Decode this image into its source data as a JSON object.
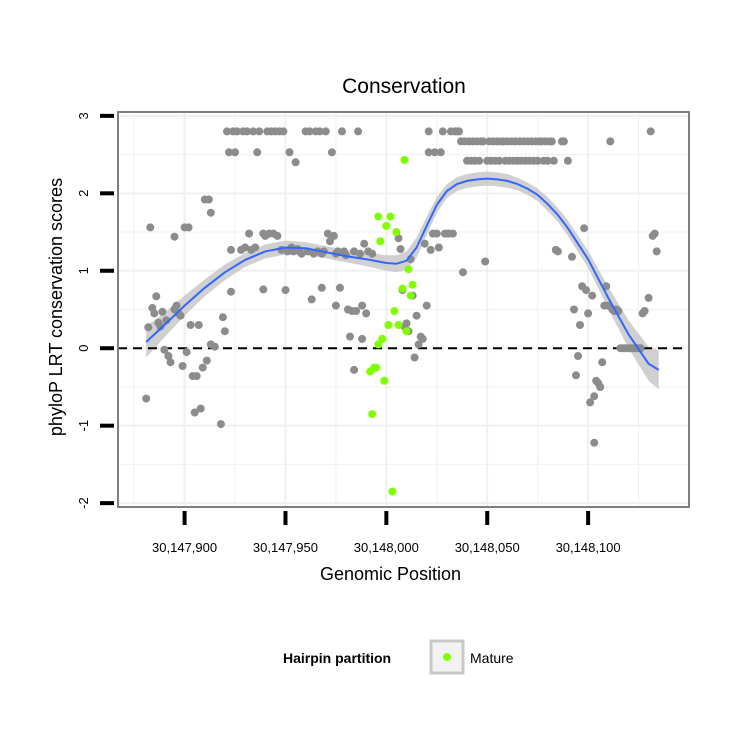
{
  "chart_data": {
    "type": "scatter",
    "title": "Conservation",
    "xlabel": "Genomic Position",
    "ylabel": "phyloP LRT conservation scores",
    "xlim": [
      30147867,
      30148150
    ],
    "ylim": [
      -2.05,
      3.05
    ],
    "xticks": [
      30147900,
      30147950,
      30148000,
      30148050,
      30148100
    ],
    "xtick_labels": [
      "30,147,900",
      "30,147,950",
      "30,148,000",
      "30,148,050",
      "30,148,100"
    ],
    "yticks": [
      -2,
      -1,
      0,
      1,
      2,
      3
    ],
    "ytick_labels": [
      "-2",
      "-1",
      "0",
      "1",
      "2",
      "3"
    ],
    "grid": true,
    "hline": {
      "y": 0,
      "style": "dashed",
      "color": "#000000"
    },
    "colors": {
      "other": "#8c8c8c",
      "mature": "#7fff00",
      "smooth": "#3366ff",
      "ribbon": "#c8c8c8",
      "panel_border": "#7f7f7f",
      "grid": "#f0f0f0"
    },
    "legend": {
      "title": "Hairpin partition",
      "entries": [
        "Mature"
      ],
      "placement": "bottom"
    },
    "series": [
      {
        "name": "Other",
        "points": [
          [
            30147881,
            -0.65
          ],
          [
            30147882,
            0.27
          ],
          [
            30147883,
            1.56
          ],
          [
            30147884,
            0.52
          ],
          [
            30147885,
            0.45
          ],
          [
            30147886,
            0.67
          ],
          [
            30147887,
            0.33
          ],
          [
            30147888,
            0.28
          ],
          [
            30147889,
            0.47
          ],
          [
            30147890,
            -0.02
          ],
          [
            30147891,
            0.36
          ],
          [
            30147892,
            -0.1
          ],
          [
            30147893,
            -0.18
          ],
          [
            30147895,
            1.44
          ],
          [
            30147895,
            0.5
          ],
          [
            30147896,
            0.55
          ],
          [
            30147897,
            0.45
          ],
          [
            30147898,
            0.42
          ],
          [
            30147899,
            -0.23
          ],
          [
            30147900,
            1.56
          ],
          [
            30147901,
            -0.05
          ],
          [
            30147902,
            1.56
          ],
          [
            30147903,
            0.3
          ],
          [
            30147904,
            -0.36
          ],
          [
            30147905,
            -0.83
          ],
          [
            30147906,
            -0.36
          ],
          [
            30147907,
            0.3
          ],
          [
            30147908,
            -0.78
          ],
          [
            30147909,
            -0.25
          ],
          [
            30147910,
            1.92
          ],
          [
            30147911,
            -0.16
          ],
          [
            30147912,
            1.92
          ],
          [
            30147913,
            1.75
          ],
          [
            30147913,
            0.05
          ],
          [
            30147915,
            0.02
          ],
          [
            30147918,
            -0.98
          ],
          [
            30147919,
            0.4
          ],
          [
            30147920,
            0.22
          ],
          [
            30147921,
            2.8
          ],
          [
            30147922,
            2.53
          ],
          [
            30147923,
            0.73
          ],
          [
            30147923,
            1.27
          ],
          [
            30147924,
            2.8
          ],
          [
            30147925,
            2.53
          ],
          [
            30147926,
            2.8
          ],
          [
            30147928,
            1.27
          ],
          [
            30147929,
            2.8
          ],
          [
            30147930,
            1.3
          ],
          [
            30147931,
            2.8
          ],
          [
            30147932,
            1.48
          ],
          [
            30147933,
            1.27
          ],
          [
            30147934,
            2.8
          ],
          [
            30147935,
            1.3
          ],
          [
            30147936,
            2.53
          ],
          [
            30147937,
            2.8
          ],
          [
            30147939,
            0.76
          ],
          [
            30147939,
            1.48
          ],
          [
            30147940,
            1.45
          ],
          [
            30147941,
            2.8
          ],
          [
            30147942,
            1.48
          ],
          [
            30147943,
            2.8
          ],
          [
            30147944,
            1.48
          ],
          [
            30147945,
            2.8
          ],
          [
            30147946,
            1.45
          ],
          [
            30147947,
            2.8
          ],
          [
            30147948,
            1.27
          ],
          [
            30147949,
            2.8
          ],
          [
            30147950,
            0.75
          ],
          [
            30147951,
            1.25
          ],
          [
            30147952,
            2.53
          ],
          [
            30147953,
            1.3
          ],
          [
            30147954,
            1.25
          ],
          [
            30147955,
            2.4
          ],
          [
            30147956,
            1.28
          ],
          [
            30147957,
            1.25
          ],
          [
            30147958,
            1.22
          ],
          [
            30147960,
            2.8
          ],
          [
            30147961,
            1.25
          ],
          [
            30147962,
            2.8
          ],
          [
            30147963,
            0.63
          ],
          [
            30147964,
            1.22
          ],
          [
            30147965,
            2.8
          ],
          [
            30147966,
            1.25
          ],
          [
            30147967,
            2.8
          ],
          [
            30147968,
            0.78
          ],
          [
            30147968,
            1.22
          ],
          [
            30147969,
            1.25
          ],
          [
            30147970,
            2.8
          ],
          [
            30147971,
            1.48
          ],
          [
            30147972,
            1.38
          ],
          [
            30147973,
            2.53
          ],
          [
            30147974,
            1.45
          ],
          [
            30147975,
            0.55
          ],
          [
            30147975,
            1.22
          ],
          [
            30147976,
            1.25
          ],
          [
            30147977,
            0.78
          ],
          [
            30147978,
            2.8
          ],
          [
            30147979,
            1.25
          ],
          [
            30147980,
            1.2
          ],
          [
            30147981,
            0.5
          ],
          [
            30147982,
            0.15
          ],
          [
            30147983,
            0.48
          ],
          [
            30147984,
            1.25
          ],
          [
            30147984,
            -0.28
          ],
          [
            30147985,
            0.48
          ],
          [
            30147986,
            2.8
          ],
          [
            30147987,
            1.22
          ],
          [
            30147988,
            0.55
          ],
          [
            30147988,
            0.12
          ],
          [
            30147989,
            1.35
          ],
          [
            30147990,
            0.45
          ],
          [
            30147991,
            1.25
          ],
          [
            30147993,
            1.22
          ],
          [
            30148006,
            1.42
          ],
          [
            30148007,
            1.28
          ],
          [
            30148008,
            0.75
          ],
          [
            30148009,
            0.28
          ],
          [
            30148010,
            0.32
          ],
          [
            30148011,
            0.22
          ],
          [
            30148012,
            1.15
          ],
          [
            30148013,
            0.68
          ],
          [
            30148014,
            -0.12
          ],
          [
            30148015,
            0.42
          ],
          [
            30148016,
            0.05
          ],
          [
            30148017,
            0.15
          ],
          [
            30148018,
            0.12
          ],
          [
            30148019,
            1.35
          ],
          [
            30148020,
            0.55
          ],
          [
            30148021,
            2.8
          ],
          [
            30148021,
            2.53
          ],
          [
            30148022,
            1.27
          ],
          [
            30148023,
            1.48
          ],
          [
            30148024,
            2.53
          ],
          [
            30148025,
            1.48
          ],
          [
            30148026,
            1.3
          ],
          [
            30148027,
            2.53
          ],
          [
            30148028,
            2.8
          ],
          [
            30148029,
            1.48
          ],
          [
            30148030,
            1.48
          ],
          [
            30148031,
            1.48
          ],
          [
            30148032,
            2.8
          ],
          [
            30148033,
            1.48
          ],
          [
            30148034,
            2.8
          ],
          [
            30148035,
            2.8
          ],
          [
            30148036,
            2.8
          ],
          [
            30148037,
            2.67
          ],
          [
            30148038,
            0.98
          ],
          [
            30148039,
            2.67
          ],
          [
            30148040,
            2.42
          ],
          [
            30148041,
            2.67
          ],
          [
            30148042,
            2.42
          ],
          [
            30148043,
            2.67
          ],
          [
            30148044,
            2.42
          ],
          [
            30148045,
            2.67
          ],
          [
            30148046,
            2.42
          ],
          [
            30148047,
            2.67
          ],
          [
            30148048,
            2.67
          ],
          [
            30148049,
            1.12
          ],
          [
            30148050,
            2.42
          ],
          [
            30148051,
            2.67
          ],
          [
            30148052,
            2.42
          ],
          [
            30148053,
            2.67
          ],
          [
            30148054,
            2.42
          ],
          [
            30148055,
            2.67
          ],
          [
            30148056,
            2.42
          ],
          [
            30148057,
            2.67
          ],
          [
            30148058,
            2.67
          ],
          [
            30148059,
            2.42
          ],
          [
            30148060,
            2.67
          ],
          [
            30148061,
            2.42
          ],
          [
            30148062,
            2.67
          ],
          [
            30148063,
            2.42
          ],
          [
            30148064,
            2.67
          ],
          [
            30148065,
            2.42
          ],
          [
            30148066,
            2.67
          ],
          [
            30148067,
            2.42
          ],
          [
            30148068,
            2.67
          ],
          [
            30148069,
            2.42
          ],
          [
            30148070,
            2.67
          ],
          [
            30148071,
            2.42
          ],
          [
            30148072,
            2.67
          ],
          [
            30148073,
            2.42
          ],
          [
            30148074,
            2.67
          ],
          [
            30148075,
            2.42
          ],
          [
            30148076,
            2.67
          ],
          [
            30148077,
            2.67
          ],
          [
            30148078,
            2.42
          ],
          [
            30148079,
            2.67
          ],
          [
            30148080,
            2.42
          ],
          [
            30148081,
            2.67
          ],
          [
            30148082,
            2.67
          ],
          [
            30148083,
            2.42
          ],
          [
            30148084,
            1.27
          ],
          [
            30148085,
            1.25
          ],
          [
            30148087,
            2.67
          ],
          [
            30148088,
            2.67
          ],
          [
            30148090,
            2.42
          ],
          [
            30148092,
            1.18
          ],
          [
            30148093,
            0.5
          ],
          [
            30148094,
            -0.35
          ],
          [
            30148095,
            -0.1
          ],
          [
            30148096,
            0.3
          ],
          [
            30148097,
            0.8
          ],
          [
            30148098,
            1.55
          ],
          [
            30148099,
            0.75
          ],
          [
            30148100,
            0.45
          ],
          [
            30148101,
            -0.7
          ],
          [
            30148102,
            0.68
          ],
          [
            30148103,
            -0.62
          ],
          [
            30148103,
            -1.22
          ],
          [
            30148104,
            -0.42
          ],
          [
            30148105,
            -0.45
          ],
          [
            30148106,
            -0.5
          ],
          [
            30148107,
            -0.18
          ],
          [
            30148108,
            0.55
          ],
          [
            30148109,
            0.8
          ],
          [
            30148110,
            0.55
          ],
          [
            30148111,
            2.67
          ],
          [
            30148112,
            0.5
          ],
          [
            30148113,
            0.48
          ],
          [
            30148114,
            0.5
          ],
          [
            30148115,
            0.48
          ],
          [
            30148116,
            0.0
          ],
          [
            30148117,
            0.0
          ],
          [
            30148118,
            0.0
          ],
          [
            30148119,
            0.0
          ],
          [
            30148120,
            0.0
          ],
          [
            30148121,
            0.0
          ],
          [
            30148122,
            0.0
          ],
          [
            30148123,
            0.0
          ],
          [
            30148124,
            0.0
          ],
          [
            30148125,
            0.0
          ],
          [
            30148126,
            0.0
          ],
          [
            30148127,
            0.45
          ],
          [
            30148128,
            0.48
          ],
          [
            30148130,
            0.65
          ],
          [
            30148131,
            2.8
          ],
          [
            30148132,
            1.45
          ],
          [
            30148133,
            1.48
          ],
          [
            30148134,
            1.25
          ]
        ]
      },
      {
        "name": "Mature",
        "points": [
          [
            30147992,
            -0.3
          ],
          [
            30147993,
            -0.85
          ],
          [
            30147994,
            -0.25
          ],
          [
            30147995,
            -0.25
          ],
          [
            30147996,
            1.7
          ],
          [
            30147996,
            0.05
          ],
          [
            30147997,
            1.38
          ],
          [
            30147998,
            0.12
          ],
          [
            30147999,
            -0.42
          ],
          [
            30148000,
            1.58
          ],
          [
            30148001,
            0.3
          ],
          [
            30148002,
            1.7
          ],
          [
            30148003,
            -1.85
          ],
          [
            30148004,
            0.48
          ],
          [
            30148005,
            1.5
          ],
          [
            30148006,
            0.3
          ],
          [
            30148008,
            0.77
          ],
          [
            30148009,
            2.43
          ],
          [
            30148010,
            0.22
          ],
          [
            30148011,
            1.02
          ],
          [
            30148012,
            0.68
          ],
          [
            30148013,
            0.82
          ]
        ]
      }
    ],
    "smooth": {
      "x": [
        30147881,
        30147890,
        30147900,
        30147910,
        30147920,
        30147930,
        30147940,
        30147950,
        30147960,
        30147970,
        30147980,
        30147990,
        30148000,
        30148005,
        30148010,
        30148015,
        30148020,
        30148025,
        30148030,
        30148035,
        30148040,
        30148045,
        30148050,
        30148055,
        30148060,
        30148065,
        30148070,
        30148075,
        30148080,
        30148085,
        30148090,
        30148100,
        30148110,
        30148120,
        30148130,
        30148135
      ],
      "y": [
        0.08,
        0.3,
        0.55,
        0.78,
        0.98,
        1.14,
        1.25,
        1.3,
        1.29,
        1.24,
        1.19,
        1.15,
        1.1,
        1.09,
        1.13,
        1.3,
        1.58,
        1.85,
        2.03,
        2.12,
        2.16,
        2.18,
        2.19,
        2.18,
        2.16,
        2.12,
        2.06,
        1.98,
        1.86,
        1.72,
        1.55,
        1.15,
        0.65,
        0.18,
        -0.2,
        -0.28
      ],
      "se": [
        0.2,
        0.16,
        0.13,
        0.11,
        0.1,
        0.09,
        0.09,
        0.09,
        0.08,
        0.08,
        0.08,
        0.09,
        0.1,
        0.11,
        0.12,
        0.13,
        0.12,
        0.1,
        0.09,
        0.09,
        0.09,
        0.09,
        0.09,
        0.09,
        0.09,
        0.08,
        0.08,
        0.08,
        0.09,
        0.09,
        0.1,
        0.11,
        0.14,
        0.18,
        0.22,
        0.25
      ]
    }
  }
}
